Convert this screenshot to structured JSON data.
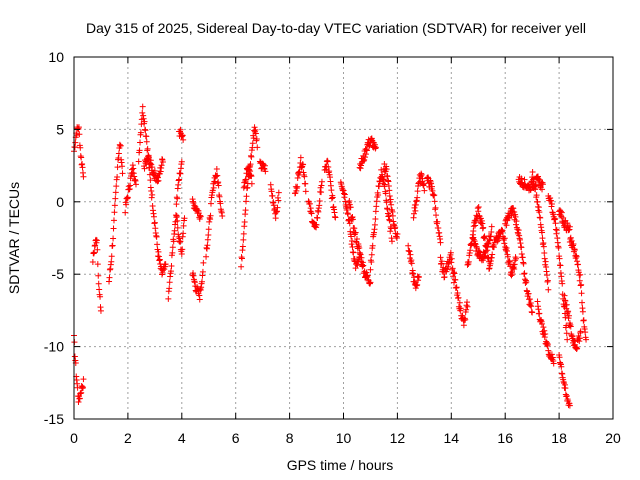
{
  "chart_data": {
    "type": "scatter",
    "title": "Day 315 of 2025, Sidereal Day-to-day VTEC variation (SDTVAR) for receiver yell",
    "xlabel": "GPS time / hours",
    "ylabel": "SDTVAR / TECUs",
    "xlim": [
      0,
      20
    ],
    "ylim": [
      -15,
      10
    ],
    "x_ticks": [
      0,
      2,
      4,
      6,
      8,
      10,
      12,
      14,
      16,
      18,
      20
    ],
    "y_ticks": [
      -15,
      -10,
      -5,
      0,
      5,
      10
    ],
    "x_tick_labels": [
      "0",
      "2",
      "4",
      "6",
      "8",
      "10",
      "12",
      "14",
      "16",
      "18",
      "20"
    ],
    "y_tick_labels": [
      "-15",
      "-10",
      "-5",
      "0",
      "5",
      "10"
    ],
    "grid": true,
    "marker": "+",
    "color": "#ff0000",
    "series": [
      {
        "name": "SDTVAR",
        "segments": [
          {
            "x0": 0.0,
            "x1": 0.35,
            "y": [
              3.5,
              4.8,
              5.2,
              3.0,
              2.0
            ]
          },
          {
            "x0": 0.0,
            "x1": 0.35,
            "y": [
              -9.5,
              -12.0,
              -13.8,
              -13.0,
              -12.5
            ]
          },
          {
            "x0": 0.7,
            "x1": 1.0,
            "y": [
              -4.0,
              -3.0,
              -2.5,
              -6.0,
              -7.5
            ]
          },
          {
            "x0": 1.3,
            "x1": 1.8,
            "y": [
              -5.5,
              -4.0,
              -2.0,
              0.5,
              3.0,
              4.0,
              2.0
            ]
          },
          {
            "x0": 1.9,
            "x1": 2.3,
            "y": [
              -0.5,
              0.5,
              1.5,
              2.5,
              1.0
            ]
          },
          {
            "x0": 2.4,
            "x1": 3.4,
            "y": [
              3.0,
              6.5,
              4.5,
              1.5,
              -1.0,
              -3.5,
              -5.0,
              -4.5
            ]
          },
          {
            "x0": 2.6,
            "x1": 3.3,
            "y": [
              2.5,
              3.0,
              2.0,
              1.5,
              3.0
            ]
          },
          {
            "x0": 3.5,
            "x1": 4.0,
            "y": [
              -6.5,
              -4.0,
              -1.5,
              1.5,
              2.5
            ]
          },
          {
            "x0": 3.8,
            "x1": 4.1,
            "y": [
              -1.0,
              -2.5,
              -3.5,
              -1.0
            ]
          },
          {
            "x0": 3.9,
            "x1": 4.05,
            "y": [
              4.8,
              4.5
            ]
          },
          {
            "x0": 4.4,
            "x1": 4.8,
            "y": [
              -5.0,
              -6.0,
              -6.5,
              -4.5
            ]
          },
          {
            "x0": 4.4,
            "x1": 4.7,
            "y": [
              0.0,
              -0.5,
              -1.0
            ]
          },
          {
            "x0": 4.9,
            "x1": 5.5,
            "y": [
              -3.5,
              -2.0,
              0.0,
              1.5,
              2.0,
              0.5,
              -1.0
            ]
          },
          {
            "x0": 6.2,
            "x1": 6.8,
            "y": [
              -4.5,
              -2.0,
              0.5,
              2.0,
              3.5,
              5.2,
              4.0
            ]
          },
          {
            "x0": 6.3,
            "x1": 6.6,
            "y": [
              1.0,
              2.5,
              1.5
            ]
          },
          {
            "x0": 6.9,
            "x1": 7.1,
            "y": [
              2.5,
              2.3
            ]
          },
          {
            "x0": 7.3,
            "x1": 7.6,
            "y": [
              1.0,
              0.0,
              -1.0,
              0.5
            ]
          },
          {
            "x0": 8.2,
            "x1": 8.6,
            "y": [
              0.5,
              1.5,
              2.8,
              2.5,
              1.0
            ]
          },
          {
            "x0": 8.7,
            "x1": 9.2,
            "y": [
              0.0,
              -1.0,
              -2.0,
              -0.5,
              1.5
            ]
          },
          {
            "x0": 9.3,
            "x1": 9.7,
            "y": [
              2.0,
              2.8,
              1.5,
              0.0,
              -1.0
            ]
          },
          {
            "x0": 9.9,
            "x1": 10.6,
            "y": [
              1.5,
              0.5,
              -1.0,
              -3.0,
              -4.5,
              -4.0
            ]
          },
          {
            "x0": 10.2,
            "x1": 11.0,
            "y": [
              0.0,
              -2.0,
              -3.5,
              -5.0,
              -5.5
            ]
          },
          {
            "x0": 10.6,
            "x1": 11.2,
            "y": [
              2.5,
              3.0,
              4.0,
              4.2,
              3.5
            ]
          },
          {
            "x0": 11.0,
            "x1": 11.8,
            "y": [
              -4.5,
              -2.0,
              0.5,
              2.0,
              1.0,
              -1.0,
              -2.5
            ]
          },
          {
            "x0": 11.5,
            "x1": 12.0,
            "y": [
              2.5,
              2.0,
              0.0,
              -1.5,
              -2.5
            ]
          },
          {
            "x0": 12.4,
            "x1": 12.8,
            "y": [
              -3.0,
              -4.5,
              -6.0,
              -5.0
            ]
          },
          {
            "x0": 12.6,
            "x1": 13.0,
            "y": [
              -1.0,
              0.0,
              1.5,
              1.8,
              1.0
            ]
          },
          {
            "x0": 13.1,
            "x1": 13.6,
            "y": [
              1.5,
              1.2,
              0.5,
              -1.5,
              -3.0
            ]
          },
          {
            "x0": 13.6,
            "x1": 14.1,
            "y": [
              -4.0,
              -5.0,
              -4.5,
              -3.5,
              -5.5
            ]
          },
          {
            "x0": 14.1,
            "x1": 14.6,
            "y": [
              -5.0,
              -6.5,
              -7.5,
              -8.5,
              -7.0
            ]
          },
          {
            "x0": 14.6,
            "x1": 15.4,
            "y": [
              -4.5,
              -3.0,
              -1.5,
              -0.5,
              -1.5,
              -3.0,
              -4.0
            ]
          },
          {
            "x0": 14.8,
            "x1": 15.5,
            "y": [
              -2.5,
              -3.5,
              -4.0,
              -3.0,
              -2.0
            ]
          },
          {
            "x0": 15.4,
            "x1": 16.4,
            "y": [
              -4.5,
              -3.0,
              -2.5,
              -2.0,
              -3.5,
              -5.0,
              -4.0
            ]
          },
          {
            "x0": 16.0,
            "x1": 17.0,
            "y": [
              -1.5,
              -1.0,
              -0.5,
              -1.5,
              -3.0,
              -5.0,
              -6.5,
              -7.5
            ]
          },
          {
            "x0": 16.5,
            "x1": 17.4,
            "y": [
              1.5,
              1.3,
              1.0,
              1.2,
              1.5,
              1.0
            ]
          },
          {
            "x0": 17.0,
            "x1": 17.6,
            "y": [
              2.0,
              1.0,
              -0.5,
              -2.0,
              -4.0,
              -6.0
            ]
          },
          {
            "x0": 17.2,
            "x1": 17.8,
            "y": [
              -7.0,
              -8.5,
              -9.5,
              -10.5,
              -11.0
            ]
          },
          {
            "x0": 17.6,
            "x1": 18.3,
            "y": [
              0.5,
              0.0,
              -1.0,
              -2.0,
              -3.5,
              -5.5,
              -7.5,
              -9.5
            ]
          },
          {
            "x0": 18.0,
            "x1": 18.4,
            "y": [
              -10.5,
              -12.0,
              -13.5,
              -14.0
            ]
          },
          {
            "x0": 18.2,
            "x1": 18.8,
            "y": [
              -6.5,
              -8.0,
              -9.5,
              -10.0,
              -9.0
            ]
          },
          {
            "x0": 18.4,
            "x1": 19.0,
            "y": [
              -2.5,
              -3.0,
              -3.5,
              -4.5,
              -5.5,
              -8.0,
              -9.5
            ]
          },
          {
            "x0": 18.0,
            "x1": 18.4,
            "y": [
              -0.5,
              -1.5,
              -2.0
            ]
          }
        ]
      }
    ]
  }
}
